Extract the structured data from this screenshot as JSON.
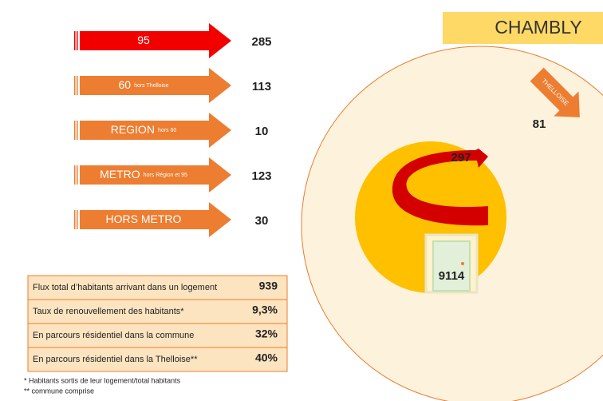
{
  "title": "CHAMBLY",
  "arrows": [
    {
      "label": "95",
      "value": 285
    },
    {
      "label": "60",
      "sublabel": "hors Thelloise",
      "value": 113
    },
    {
      "label": "REGION",
      "sublabel": "hors 60",
      "value": 10
    },
    {
      "label": "METRO",
      "sublabel": "hors Région et 95",
      "value": 123
    },
    {
      "label": "HORS METRO",
      "value": 30
    }
  ],
  "territory": {
    "label": "THELLOISE",
    "value": 81
  },
  "internal_moves": 297,
  "stayed": 9114,
  "table": {
    "rows": [
      [
        "Flux total d’habitants arrivant dans un logement",
        939
      ],
      [
        "Taux de renouvellement des habitants*",
        "9,3%"
      ],
      [
        "En parcours résidentiel dans la commune",
        "32%"
      ],
      [
        "En parcours résidentiel dans la Thelloise**",
        "40%"
      ]
    ]
  },
  "notes": [
    "* Habitants sortis de leur logement/total habitants",
    "** commune comprise"
  ]
}
